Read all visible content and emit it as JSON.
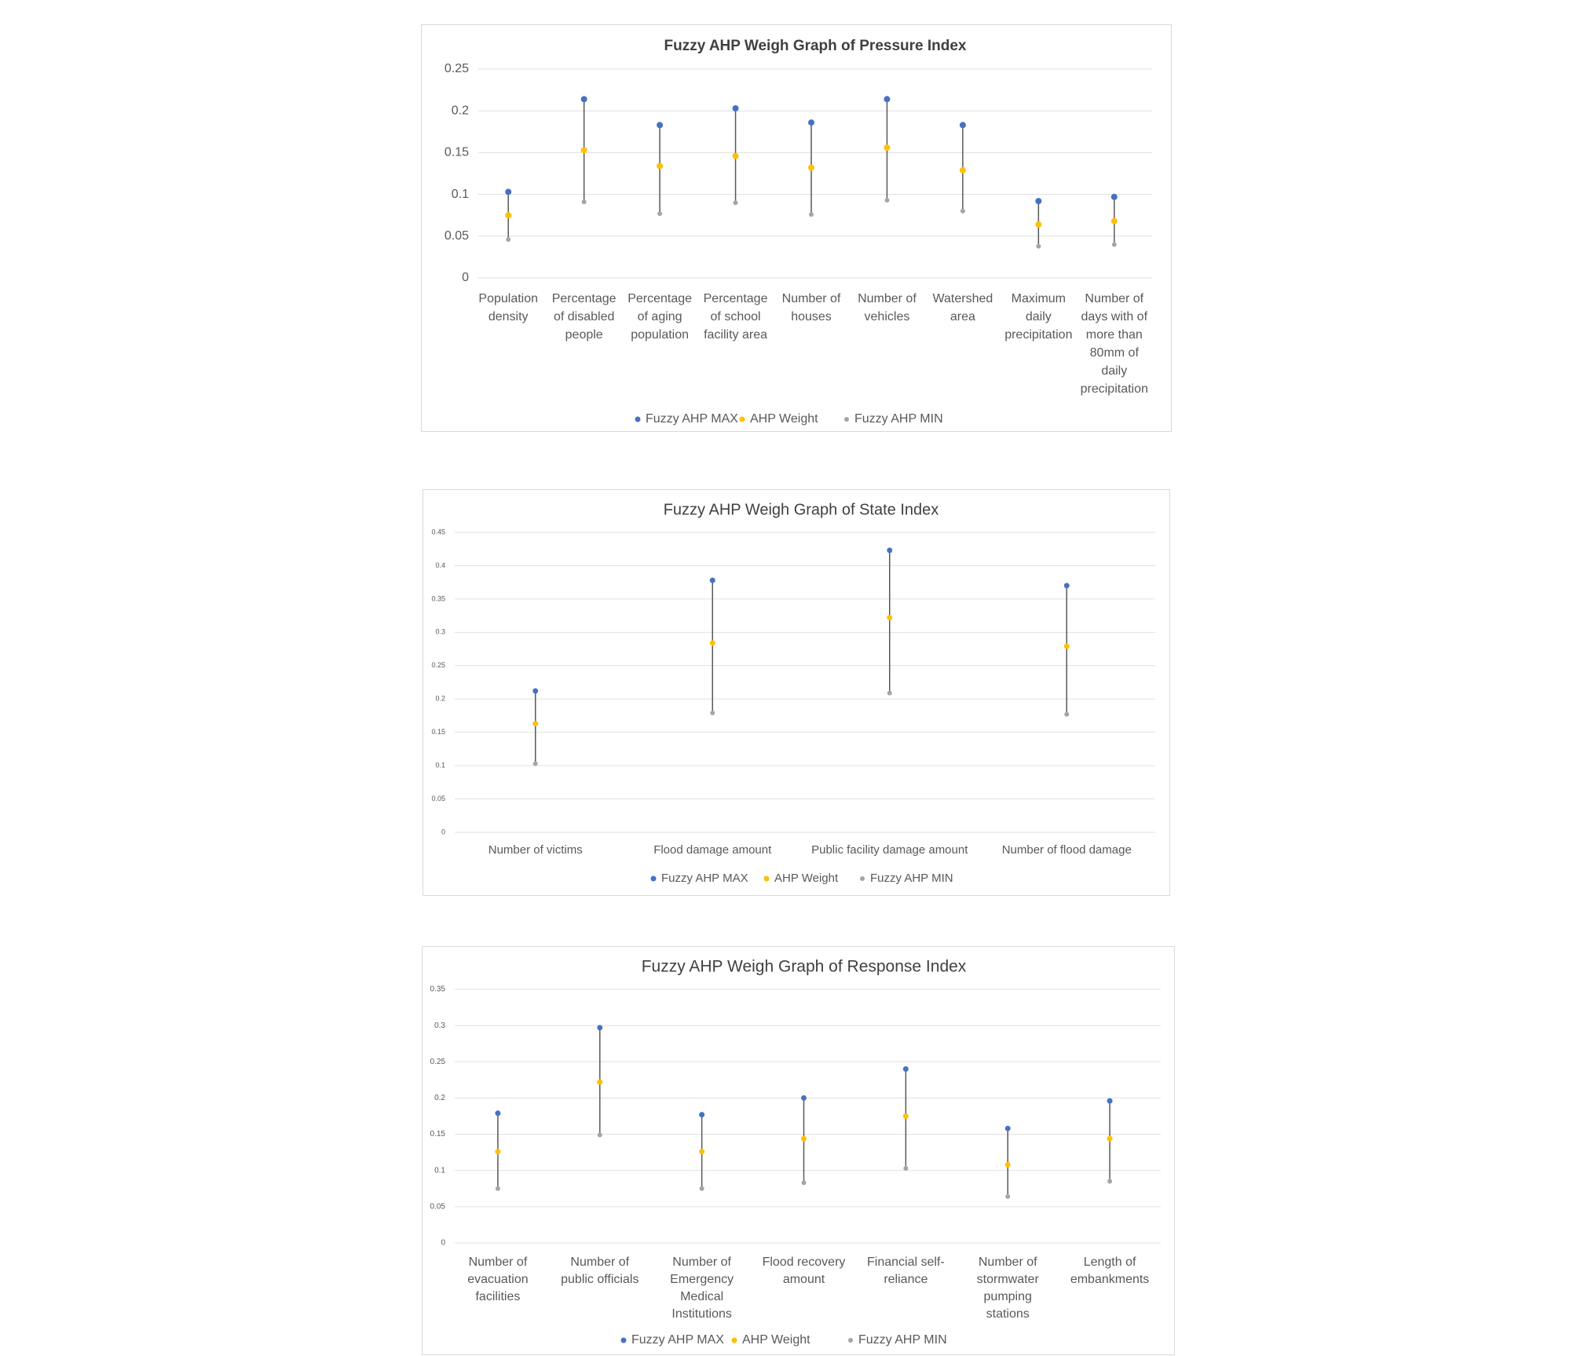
{
  "chart_data": [
    {
      "type": "scatter",
      "title": "Fuzzy AHP Weigh  Graph of Pressure Index",
      "categories": [
        [
          "Population",
          "density"
        ],
        [
          "Percentage",
          "of disabled",
          "people"
        ],
        [
          "Percentage",
          "of aging",
          "population"
        ],
        [
          "Percentage",
          "of school",
          "facility area"
        ],
        [
          "Number of",
          "houses"
        ],
        [
          "Number of",
          "vehicles"
        ],
        [
          "Watershed",
          "area"
        ],
        [
          "Maximum",
          "daily",
          "precipitation"
        ],
        [
          "Number of",
          "days with of",
          "more than",
          "80mm of",
          "daily",
          "precipitation"
        ]
      ],
      "series": [
        {
          "name": "Fuzzy AHP MAX",
          "color": "#4472c4",
          "values": [
            0.103,
            0.214,
            0.183,
            0.203,
            0.186,
            0.214,
            0.183,
            0.092,
            0.097
          ]
        },
        {
          "name": "AHP Weight",
          "color": "#ffc000",
          "values": [
            0.075,
            0.153,
            0.134,
            0.146,
            0.132,
            0.156,
            0.129,
            0.064,
            0.068
          ]
        },
        {
          "name": "Fuzzy AHP MIN",
          "color": "#a5a5a5",
          "values": [
            0.046,
            0.091,
            0.077,
            0.09,
            0.076,
            0.093,
            0.08,
            0.038,
            0.04
          ]
        }
      ],
      "yticks": [
        "0",
        "0.05",
        "0.1",
        "0.15",
        "0.2",
        "0.25"
      ],
      "ylim": [
        0,
        0.25
      ],
      "grid": true,
      "legend": "bottom"
    },
    {
      "type": "scatter",
      "title": "Fuzzy AHP Weigh  Graph of State Index",
      "categories": [
        [
          "Number of victims"
        ],
        [
          "Flood damage amount"
        ],
        [
          "Public facility damage amount"
        ],
        [
          "Number of flood damage"
        ]
      ],
      "series": [
        {
          "name": "Fuzzy AHP MAX",
          "color": "#4472c4",
          "values": [
            0.212,
            0.378,
            0.423,
            0.37
          ]
        },
        {
          "name": "AHP Weight",
          "color": "#ffc000",
          "values": [
            0.163,
            0.284,
            0.322,
            0.279
          ]
        },
        {
          "name": "Fuzzy AHP MIN",
          "color": "#a5a5a5",
          "values": [
            0.103,
            0.179,
            0.209,
            0.177
          ]
        }
      ],
      "yticks": [
        "0",
        "0.05",
        "0.1",
        "0.15",
        "0.2",
        "0.25",
        "0.3",
        "0.35",
        "0.4",
        "0.45"
      ],
      "ylim": [
        0,
        0.45
      ],
      "grid": true,
      "legend": "bottom"
    },
    {
      "type": "scatter",
      "title": "Fuzzy AHP Weigh  Graph of Response Index",
      "categories": [
        [
          "Number of",
          "evacuation",
          "facilities"
        ],
        [
          "Number of",
          "public officials"
        ],
        [
          "Number of",
          "Emergency",
          "Medical",
          "Institutions"
        ],
        [
          "Flood recovery",
          "amount"
        ],
        [
          "Financial self-",
          "reliance"
        ],
        [
          "Number of",
          "stormwater",
          "pumping",
          "stations"
        ],
        [
          "Length of",
          "embankments"
        ]
      ],
      "series": [
        {
          "name": "Fuzzy AHP MAX",
          "color": "#4472c4",
          "values": [
            0.179,
            0.297,
            0.177,
            0.2,
            0.24,
            0.158,
            0.196
          ]
        },
        {
          "name": "AHP Weight",
          "color": "#ffc000",
          "values": [
            0.126,
            0.222,
            0.126,
            0.144,
            0.175,
            0.108,
            0.144
          ]
        },
        {
          "name": "Fuzzy AHP MIN",
          "color": "#a5a5a5",
          "values": [
            0.075,
            0.149,
            0.075,
            0.083,
            0.103,
            0.064,
            0.085
          ]
        }
      ],
      "yticks": [
        "0",
        "0.05",
        "0.1",
        "0.15",
        "0.2",
        "0.25",
        "0.3",
        "0.35"
      ],
      "ylim": [
        0,
        0.35
      ],
      "grid": true,
      "legend": "bottom"
    }
  ]
}
